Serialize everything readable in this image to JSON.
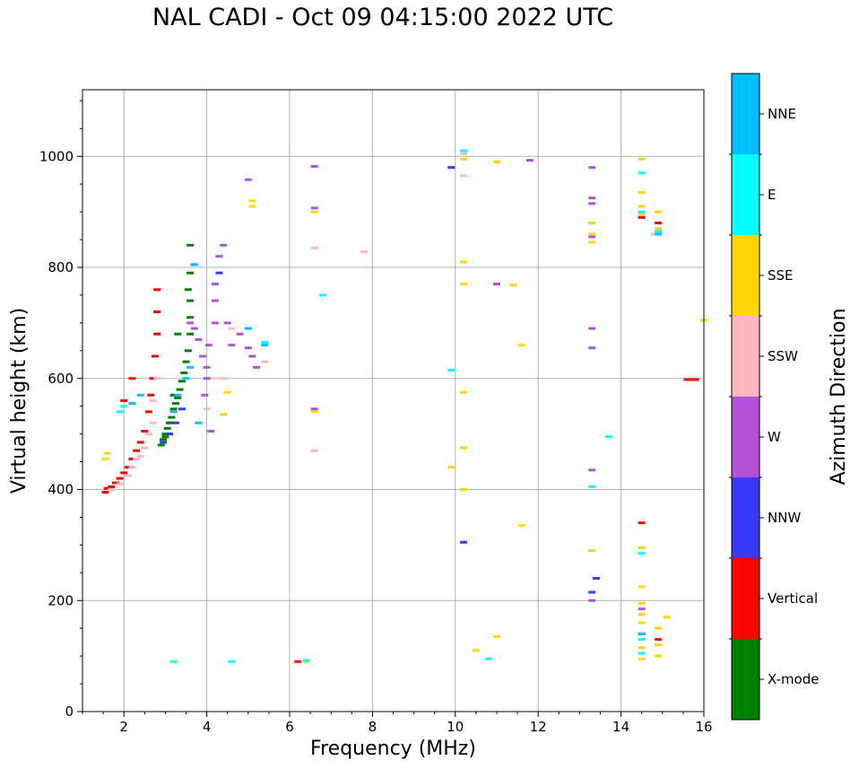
{
  "chart_data": {
    "type": "scatter",
    "title": "NAL CADI - Oct 09 04:15:00 2022 UTC",
    "xlabel": "Frequency (MHz)",
    "ylabel": "Virtual height (km)",
    "xlim": [
      1,
      16
    ],
    "ylim": [
      0,
      1120
    ],
    "xticks": [
      2,
      4,
      6,
      8,
      10,
      12,
      14,
      16
    ],
    "yticks": [
      0,
      200,
      400,
      600,
      800,
      1000
    ],
    "grid": true,
    "colorbar": {
      "label": "Azimuth Direction",
      "categories": [
        {
          "name": "X-mode",
          "color": "#008000"
        },
        {
          "name": "Vertical",
          "color": "#ff0000"
        },
        {
          "name": "NNW",
          "color": "#3a3aff"
        },
        {
          "name": "W",
          "color": "#b452d7"
        },
        {
          "name": "SSW",
          "color": "#ffb6c1"
        },
        {
          "name": "SSE",
          "color": "#ffd700"
        },
        {
          "name": "E",
          "color": "#00ffff"
        },
        {
          "name": "NNE",
          "color": "#00bfff"
        }
      ]
    },
    "series": [
      {
        "name": "X-mode",
        "points": [
          [
            2.9,
            480
          ],
          [
            2.95,
            490
          ],
          [
            3.0,
            500
          ],
          [
            3.05,
            510
          ],
          [
            3.1,
            520
          ],
          [
            3.15,
            530
          ],
          [
            3.2,
            545
          ],
          [
            3.25,
            555
          ],
          [
            3.3,
            565
          ],
          [
            3.35,
            580
          ],
          [
            3.4,
            595
          ],
          [
            3.45,
            610
          ],
          [
            3.5,
            630
          ],
          [
            3.55,
            650
          ],
          [
            3.6,
            680
          ],
          [
            3.6,
            710
          ],
          [
            3.6,
            740
          ],
          [
            3.55,
            760
          ],
          [
            3.6,
            790
          ],
          [
            3.6,
            840
          ],
          [
            3.3,
            680
          ],
          [
            3.2,
            570
          ],
          [
            3.0,
            495
          ]
        ]
      },
      {
        "name": "Vertical",
        "points": [
          [
            1.55,
            395
          ],
          [
            1.6,
            402
          ],
          [
            1.7,
            405
          ],
          [
            1.8,
            412
          ],
          [
            1.9,
            420
          ],
          [
            2.0,
            430
          ],
          [
            2.1,
            440
          ],
          [
            2.2,
            455
          ],
          [
            2.3,
            470
          ],
          [
            2.4,
            485
          ],
          [
            2.5,
            505
          ],
          [
            2.6,
            540
          ],
          [
            2.65,
            570
          ],
          [
            2.7,
            600
          ],
          [
            2.75,
            640
          ],
          [
            2.8,
            680
          ],
          [
            2.8,
            720
          ],
          [
            2.8,
            760
          ],
          [
            2.2,
            600
          ],
          [
            2.0,
            560
          ],
          [
            6.2,
            90
          ],
          [
            14.5,
            890
          ],
          [
            14.5,
            340
          ],
          [
            14.5,
            140
          ],
          [
            14.9,
            880
          ],
          [
            14.9,
            130
          ],
          [
            15.8,
            598
          ],
          [
            15.6,
            598
          ],
          [
            15.7,
            598
          ]
        ]
      },
      {
        "name": "NNW",
        "points": [
          [
            2.95,
            485
          ],
          [
            3.1,
            500
          ],
          [
            3.25,
            520
          ],
          [
            3.4,
            545
          ],
          [
            3.7,
            805
          ],
          [
            4.3,
            790
          ],
          [
            9.9,
            980
          ],
          [
            10.2,
            305
          ],
          [
            13.4,
            240
          ],
          [
            13.3,
            215
          ]
        ]
      },
      {
        "name": "W",
        "points": [
          [
            3.6,
            700
          ],
          [
            3.7,
            690
          ],
          [
            3.8,
            670
          ],
          [
            3.9,
            640
          ],
          [
            4.0,
            620
          ],
          [
            4.0,
            600
          ],
          [
            3.95,
            570
          ],
          [
            4.05,
            660
          ],
          [
            4.2,
            700
          ],
          [
            4.2,
            740
          ],
          [
            4.2,
            770
          ],
          [
            4.3,
            820
          ],
          [
            4.4,
            840
          ],
          [
            4.5,
            700
          ],
          [
            4.6,
            660
          ],
          [
            4.8,
            680
          ],
          [
            5.0,
            655
          ],
          [
            5.1,
            640
          ],
          [
            5.2,
            620
          ],
          [
            5.0,
            958
          ],
          [
            6.6,
            982
          ],
          [
            6.6,
            907
          ],
          [
            6.6,
            545
          ],
          [
            11.0,
            770
          ],
          [
            11.8,
            993
          ],
          [
            13.3,
            980
          ],
          [
            13.3,
            925
          ],
          [
            13.3,
            915
          ],
          [
            13.3,
            855
          ],
          [
            13.3,
            690
          ],
          [
            13.3,
            655
          ],
          [
            13.3,
            435
          ],
          [
            13.3,
            200
          ],
          [
            14.5,
            185
          ],
          [
            4.1,
            505
          ]
        ]
      },
      {
        "name": "SSW",
        "points": [
          [
            1.7,
            400
          ],
          [
            1.9,
            410
          ],
          [
            2.1,
            425
          ],
          [
            2.2,
            440
          ],
          [
            2.3,
            455
          ],
          [
            2.4,
            460
          ],
          [
            2.5,
            475
          ],
          [
            2.6,
            500
          ],
          [
            2.7,
            520
          ],
          [
            2.7,
            560
          ],
          [
            2.8,
            600
          ],
          [
            4.0,
            545
          ],
          [
            4.4,
            600
          ],
          [
            4.6,
            690
          ],
          [
            5.4,
            630
          ],
          [
            6.6,
            835
          ],
          [
            6.6,
            470
          ],
          [
            7.8,
            828
          ],
          [
            10.2,
            1005
          ],
          [
            10.2,
            965
          ],
          [
            14.8,
            860
          ]
        ]
      },
      {
        "name": "SSE",
        "points": [
          [
            1.55,
            455
          ],
          [
            1.6,
            465
          ],
          [
            4.4,
            535
          ],
          [
            4.5,
            575
          ],
          [
            5.1,
            920
          ],
          [
            5.1,
            910
          ],
          [
            6.6,
            900
          ],
          [
            6.6,
            540
          ],
          [
            10.2,
            995
          ],
          [
            10.2,
            810
          ],
          [
            10.2,
            770
          ],
          [
            10.2,
            575
          ],
          [
            10.2,
            475
          ],
          [
            10.2,
            400
          ],
          [
            9.9,
            440
          ],
          [
            10.5,
            110
          ],
          [
            11.0,
            990
          ],
          [
            11.0,
            135
          ],
          [
            11.4,
            768
          ],
          [
            11.6,
            660
          ],
          [
            11.6,
            335
          ],
          [
            13.3,
            880
          ],
          [
            13.3,
            860
          ],
          [
            13.3,
            845
          ],
          [
            13.3,
            290
          ],
          [
            14.5,
            995
          ],
          [
            14.5,
            935
          ],
          [
            14.5,
            910
          ],
          [
            14.5,
            895
          ],
          [
            14.5,
            295
          ],
          [
            14.5,
            225
          ],
          [
            14.5,
            195
          ],
          [
            14.5,
            175
          ],
          [
            14.5,
            160
          ],
          [
            14.5,
            115
          ],
          [
            14.5,
            95
          ],
          [
            14.9,
            900
          ],
          [
            14.9,
            870
          ],
          [
            14.9,
            150
          ],
          [
            14.9,
            120
          ],
          [
            14.9,
            100
          ],
          [
            15.1,
            170
          ],
          [
            16.0,
            705
          ],
          [
            6.4,
            90
          ]
        ]
      },
      {
        "name": "E",
        "points": [
          [
            1.9,
            540
          ],
          [
            2.0,
            550
          ],
          [
            3.2,
            90
          ],
          [
            4.6,
            90
          ],
          [
            5.4,
            665
          ],
          [
            6.8,
            750
          ],
          [
            9.9,
            615
          ],
          [
            10.2,
            1010
          ],
          [
            10.8,
            95
          ],
          [
            13.3,
            405
          ],
          [
            13.7,
            495
          ],
          [
            14.5,
            970
          ],
          [
            14.5,
            900
          ],
          [
            14.5,
            285
          ],
          [
            14.5,
            130
          ],
          [
            14.5,
            105
          ],
          [
            14.9,
            865
          ],
          [
            6.4,
            92
          ]
        ]
      },
      {
        "name": "NNE",
        "points": [
          [
            2.2,
            555
          ],
          [
            2.4,
            570
          ],
          [
            3.2,
            540
          ],
          [
            3.3,
            570
          ],
          [
            3.5,
            600
          ],
          [
            3.6,
            620
          ],
          [
            3.7,
            805
          ],
          [
            3.8,
            520
          ],
          [
            5.0,
            690
          ],
          [
            5.4,
            660
          ],
          [
            14.5,
            140
          ],
          [
            14.9,
            860
          ]
        ]
      }
    ]
  }
}
